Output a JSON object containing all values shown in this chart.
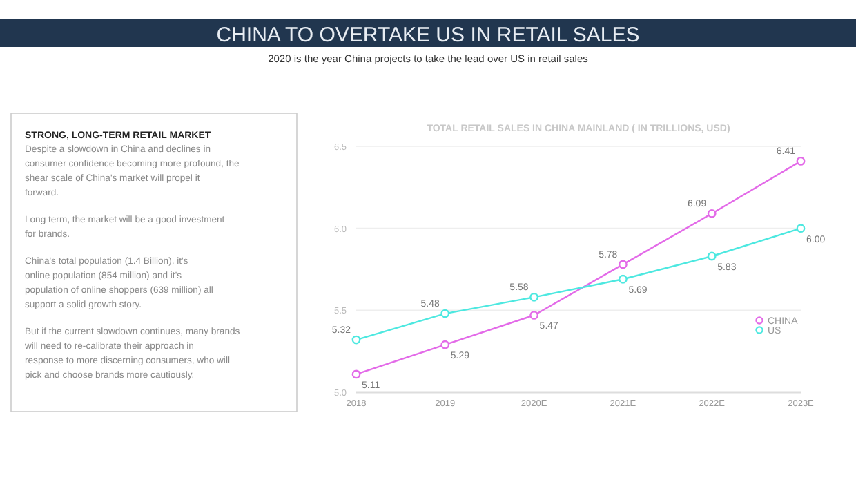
{
  "chart_data": {
    "type": "line",
    "title": "CHINA TO OVERTAKE US IN RETAIL SALES",
    "subtitle": "2020 is the year China projects to take the lead over US in retail sales",
    "annotations": [
      "TOTAL RETAIL SALES IN CHINA MAINLAND ( IN TRILLIONS, USD)",
      "STRONG, LONG-TERM RETAIL MARKET",
      "Despite a slowdown in China and declines in consumer confidence becoming more profound, the shear scale of China's market will propel it forward.",
      "Long term, the market will be a good investment for brands.",
      "China's total population (1.4 Billion), it's online population (854 million) and it's population of online shoppers (639 million) all support a solid growth story.",
      "But if the current slowdown continues, many brands will need to re-calibrate their approach in response to more discerning consumers, who will pick and choose brands more cautiously."
    ],
    "categories": [
      "2018",
      "2019",
      "2020E",
      "2021E",
      "2022E",
      "2023E"
    ],
    "series": [
      {
        "name": "CHINA",
        "color": "#e36ae8",
        "values": [
          5.11,
          5.29,
          5.47,
          5.78,
          6.09,
          6.41
        ],
        "value_labels": [
          "5.11",
          "5.29",
          "5.47",
          "5.78",
          "6.09",
          "6.41"
        ]
      },
      {
        "name": "US",
        "color": "#4de8e0",
        "values": [
          5.32,
          5.48,
          5.58,
          5.69,
          5.83,
          6.0
        ],
        "value_labels": [
          "5.32",
          "5.48",
          "5.58",
          "5.69",
          "5.83",
          "6.00"
        ]
      }
    ],
    "ylim": [
      5.0,
      6.5
    ],
    "yticks": [
      {
        "value": 5.0,
        "label": "5.0"
      },
      5.5,
      {
        "value": 6.0,
        "label": "6.0"
      },
      6.5
    ],
    "grid": "y",
    "legend": "right",
    "marker": "circle"
  }
}
